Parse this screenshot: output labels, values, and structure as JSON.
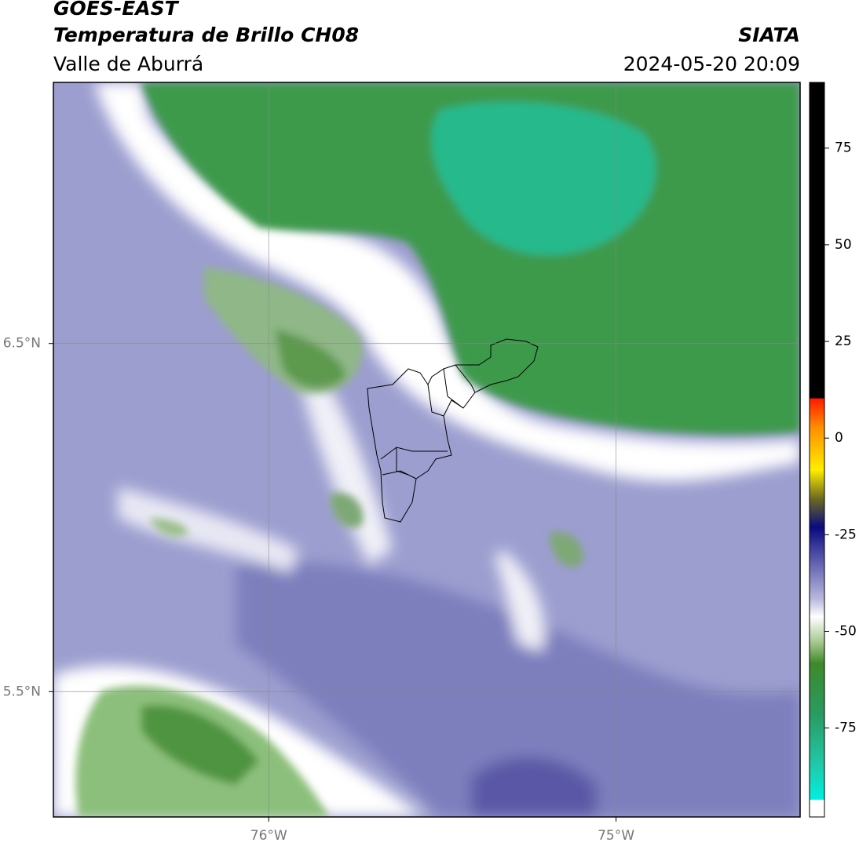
{
  "header": {
    "title": "GOES-EAST",
    "subtitle": "Temperatura de Brillo CH08",
    "region": "Valle de Aburrá",
    "source": "SIATA",
    "datetime": "2024-05-20 20:09"
  },
  "map": {
    "xlim": [
      -76.62,
      -74.47
    ],
    "ylim": [
      5.14,
      7.25
    ],
    "xticks": [
      {
        "value": -76,
        "label": "76°W"
      },
      {
        "value": -75,
        "label": "75°W"
      }
    ],
    "yticks": [
      {
        "value": 6.5,
        "label": "6.5°N"
      },
      {
        "value": 5.5,
        "label": "5.5°N"
      }
    ],
    "grid": true
  },
  "colorbar": {
    "lim": [
      -98,
      92
    ],
    "ticks": [
      75,
      50,
      25,
      0,
      -25,
      -50,
      -75
    ]
  }
}
